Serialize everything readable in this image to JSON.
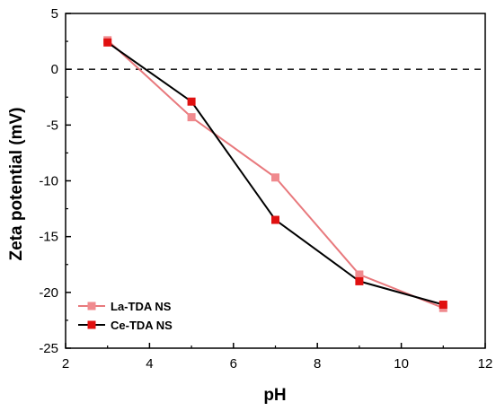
{
  "chart_data": {
    "type": "line",
    "xlabel": "pH",
    "ylabel": "Zeta potential (mV)",
    "xlim": [
      2,
      12
    ],
    "ylim": [
      -25,
      5
    ],
    "xticks": [
      2,
      4,
      6,
      8,
      10,
      12
    ],
    "yticks": [
      5,
      0,
      -5,
      -10,
      -15,
      -20,
      -25
    ],
    "reference_line": {
      "y": 0,
      "style": "dashed"
    },
    "legend_position": "bottom-left",
    "grid": false,
    "x": [
      3,
      5,
      7,
      9,
      11
    ],
    "series": [
      {
        "name": "La-TDA NS",
        "color": "#e8797d",
        "marker_color": "#f08a8e",
        "values": [
          2.6,
          -4.3,
          -9.7,
          -18.4,
          -21.4
        ]
      },
      {
        "name": "Ce-TDA NS",
        "color": "#000000",
        "marker_color": "#e01010",
        "values": [
          2.4,
          -2.9,
          -13.5,
          -19.0,
          -21.1
        ]
      }
    ]
  }
}
